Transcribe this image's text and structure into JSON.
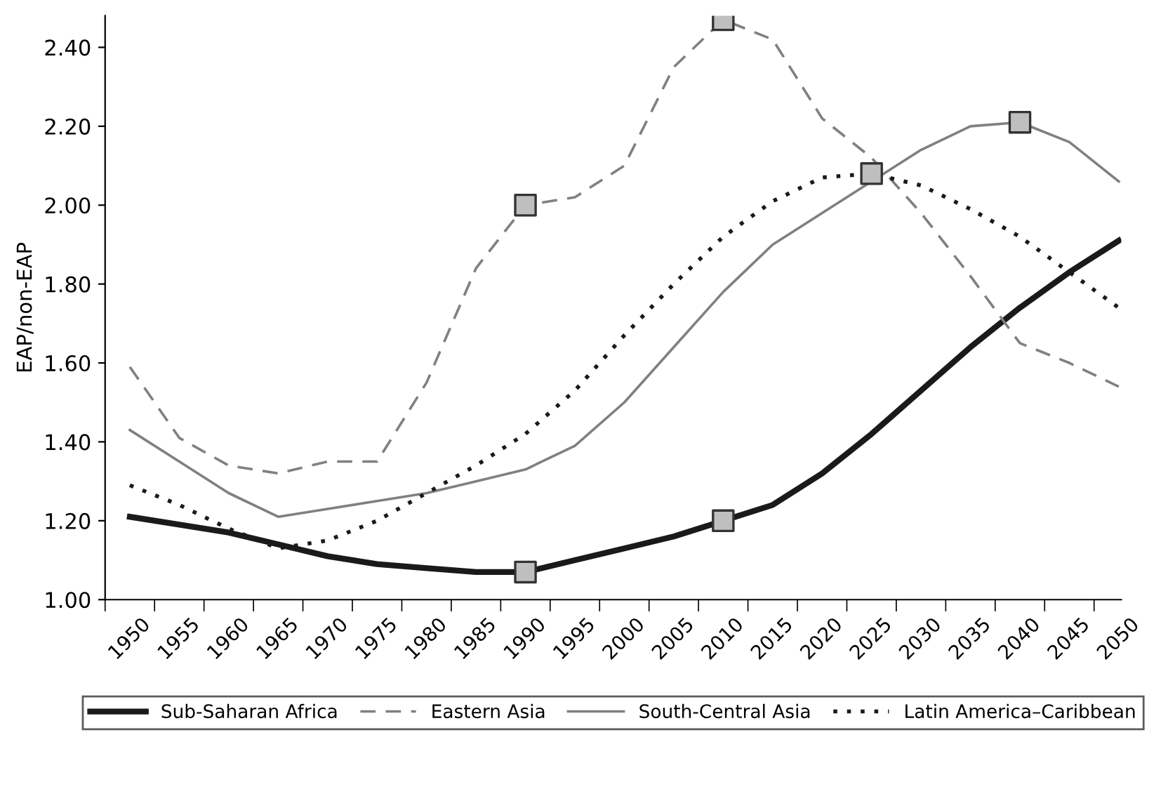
{
  "chart_data": {
    "type": "line",
    "ylabel": "EAP/non-EAP",
    "categories": [
      "1950",
      "1955",
      "1960",
      "1965",
      "1970",
      "1975",
      "1980",
      "1985",
      "1990",
      "1995",
      "2000",
      "2005",
      "2010",
      "2015",
      "2020",
      "2025",
      "2030",
      "2035",
      "2040",
      "2045",
      "2050"
    ],
    "series": [
      {
        "name": "Sub-Saharan Africa",
        "color": "#1a1a1a",
        "line_style": "solid",
        "values": [
          1.21,
          1.19,
          1.17,
          1.14,
          1.11,
          1.09,
          1.08,
          1.07,
          1.07,
          1.1,
          1.13,
          1.16,
          1.2,
          1.24,
          1.32,
          1.42,
          1.53,
          1.64,
          1.74,
          1.83,
          1.91
        ]
      },
      {
        "name": "Eastern Asia",
        "color": "#808080",
        "line_style": "dashed",
        "values": [
          1.59,
          1.41,
          1.34,
          1.32,
          1.35,
          1.35,
          1.55,
          1.84,
          2.0,
          2.02,
          2.1,
          2.35,
          2.47,
          2.42,
          2.22,
          2.12,
          1.98,
          1.82,
          1.65,
          1.6,
          1.54
        ]
      },
      {
        "name": "South-Central Asia",
        "color": "#808080",
        "line_style": "solid",
        "values": [
          1.43,
          1.35,
          1.27,
          1.21,
          1.23,
          1.25,
          1.27,
          1.3,
          1.33,
          1.39,
          1.5,
          1.64,
          1.78,
          1.9,
          1.98,
          2.06,
          2.14,
          2.2,
          2.21,
          2.16,
          2.06
        ]
      },
      {
        "name": "Latin America–Caribbean",
        "color": "#1a1a1a",
        "line_style": "dotted",
        "values": [
          1.29,
          1.24,
          1.18,
          1.13,
          1.15,
          1.2,
          1.27,
          1.34,
          1.42,
          1.53,
          1.67,
          1.8,
          1.92,
          2.01,
          2.07,
          2.08,
          2.05,
          1.99,
          1.92,
          1.83,
          1.74
        ]
      },
      {
        "type": "scatter",
        "marker": "square",
        "color": "#bfbfbf",
        "values": [
          null,
          null,
          null,
          null,
          null,
          null,
          null,
          null,
          2.0,
          null,
          null,
          null,
          2.47,
          null,
          null,
          2.08,
          null,
          null,
          2.21,
          null,
          null
        ]
      },
      {
        "type": "scatter",
        "marker": "square",
        "color": "#bfbfbf",
        "values": [
          null,
          null,
          null,
          null,
          null,
          null,
          null,
          null,
          1.07,
          null,
          null,
          null,
          1.2,
          null,
          null,
          null,
          null,
          null,
          null,
          null,
          null
        ]
      }
    ],
    "ylim": [
      1.0,
      2.48
    ],
    "yticks": [
      {
        "value": 1.0,
        "label": "1.00"
      },
      {
        "value": 1.2,
        "label": "1.20"
      },
      {
        "value": 1.4,
        "label": "1.40"
      },
      {
        "value": 1.6,
        "label": "1.60"
      },
      {
        "value": 1.8,
        "label": "1.80"
      },
      {
        "value": 2.0,
        "label": "2.00"
      },
      {
        "value": 2.2,
        "label": "2.20"
      },
      {
        "value": 2.4,
        "label": "2.40"
      }
    ],
    "grid": false,
    "legend": "bottom",
    "marker": "none"
  }
}
